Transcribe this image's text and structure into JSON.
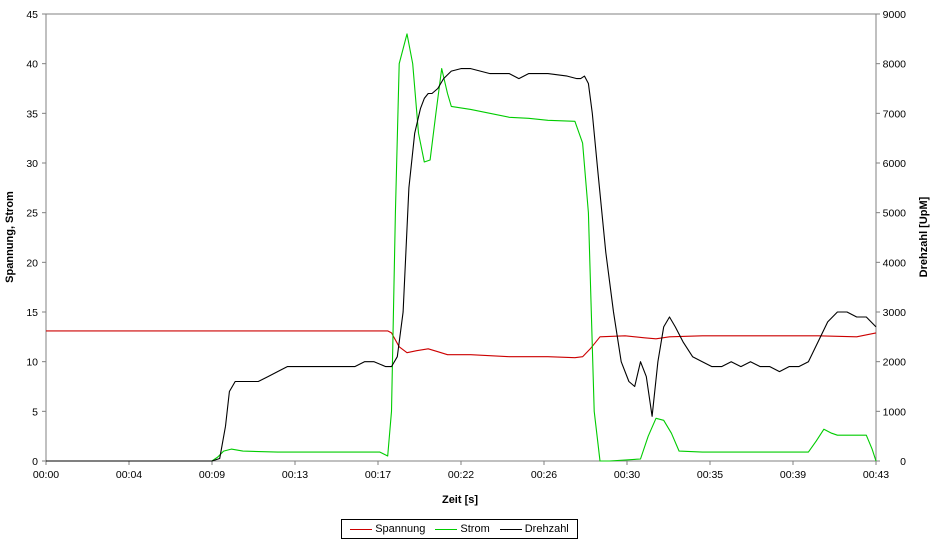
{
  "chart_data": {
    "type": "line",
    "xlabel": "Zeit [s]",
    "ylabel_left": "Spannung, Strom",
    "ylabel_right": "Drehzahl [UpM]",
    "xlim": [
      0,
      43
    ],
    "ylim_left": [
      0,
      45
    ],
    "ylim_right": [
      0,
      9000
    ],
    "x_ticks": [
      {
        "value": 0,
        "label": "00:00"
      },
      {
        "value": 4.3,
        "label": "00:04"
      },
      {
        "value": 8.6,
        "label": "00:09"
      },
      {
        "value": 12.9,
        "label": "00:13"
      },
      {
        "value": 17.2,
        "label": "00:17"
      },
      {
        "value": 21.5,
        "label": "00:22"
      },
      {
        "value": 25.8,
        "label": "00:26"
      },
      {
        "value": 30.1,
        "label": "00:30"
      },
      {
        "value": 34.4,
        "label": "00:35"
      },
      {
        "value": 38.7,
        "label": "00:39"
      },
      {
        "value": 43,
        "label": "00:43"
      }
    ],
    "y_ticks_left": [
      0,
      5,
      10,
      15,
      20,
      25,
      30,
      35,
      40,
      45
    ],
    "y_ticks_right": [
      0,
      1000,
      2000,
      3000,
      4000,
      5000,
      6000,
      7000,
      8000,
      9000
    ],
    "grid": false,
    "legend_position": "bottom",
    "series": [
      {
        "name": "Spannung",
        "axis": "left",
        "color": "#cc0000",
        "x": [
          0,
          17.7,
          17.9,
          18.3,
          18.7,
          19.2,
          19.8,
          20.3,
          20.8,
          22,
          24,
          26,
          27.4,
          27.8,
          28.2,
          28.7,
          30,
          31,
          31.6,
          32.3,
          34,
          36,
          38,
          40,
          42,
          43
        ],
        "y": [
          13.1,
          13.1,
          12.9,
          11.5,
          10.9,
          11.1,
          11.3,
          11.0,
          10.7,
          10.7,
          10.5,
          10.5,
          10.4,
          10.5,
          11.3,
          12.5,
          12.6,
          12.4,
          12.3,
          12.5,
          12.6,
          12.6,
          12.6,
          12.6,
          12.5,
          12.9
        ]
      },
      {
        "name": "Strom",
        "axis": "left",
        "color": "#00cc00",
        "x": [
          0,
          8.6,
          8.9,
          9.2,
          9.6,
          10.2,
          12,
          14,
          16,
          17.3,
          17.7,
          17.9,
          18.1,
          18.3,
          18.7,
          19.0,
          19.3,
          19.6,
          19.9,
          20.2,
          20.5,
          20.8,
          21.0,
          22,
          24,
          25,
          26,
          27.4,
          27.8,
          28.1,
          28.4,
          28.7,
          29.2,
          30.8,
          31.2,
          31.6,
          32.0,
          32.4,
          32.8,
          34,
          36,
          38,
          39.5,
          39.9,
          40.3,
          40.7,
          41.0,
          41.5,
          42.5,
          42.8,
          43
        ],
        "y": [
          0,
          0,
          0.4,
          1.0,
          1.2,
          1.0,
          0.9,
          0.9,
          0.9,
          0.9,
          0.5,
          5,
          25,
          40,
          43.0,
          40,
          33,
          30.1,
          30.3,
          35,
          39.5,
          37,
          35.7,
          35.4,
          34.6,
          34.5,
          34.3,
          34.2,
          32,
          25,
          5,
          0,
          0,
          0.2,
          2.5,
          4.3,
          4.1,
          2.8,
          1.0,
          0.9,
          0.9,
          0.9,
          0.9,
          2.0,
          3.2,
          2.8,
          2.6,
          2.6,
          2.6,
          1.2,
          0
        ]
      },
      {
        "name": "Drehzahl",
        "axis": "right",
        "color": "#000000",
        "x": [
          0,
          8.6,
          9.0,
          9.3,
          9.5,
          9.8,
          10.0,
          11,
          11.5,
          12,
          12.5,
          14,
          15,
          16,
          16.5,
          17,
          17.6,
          17.9,
          18.2,
          18.5,
          18.8,
          19.1,
          19.4,
          19.6,
          19.8,
          20,
          20.3,
          20.6,
          21,
          21.5,
          22,
          23,
          24,
          24.5,
          25,
          26,
          27,
          27.5,
          27.7,
          27.9,
          28.1,
          28.3,
          28.6,
          29,
          29.4,
          29.8,
          30.2,
          30.5,
          30.8,
          31.1,
          31.4,
          31.7,
          32.0,
          32.3,
          32.6,
          33,
          33.5,
          34,
          34.5,
          35,
          35.5,
          36,
          36.5,
          37,
          37.5,
          38,
          38.5,
          39,
          39.5,
          40,
          40.5,
          41,
          41.5,
          42,
          42.5,
          43
        ],
        "y": [
          0,
          0,
          50,
          700,
          1400,
          1600,
          1600,
          1600,
          1700,
          1800,
          1900,
          1900,
          1900,
          1900,
          2000,
          2000,
          1900,
          1900,
          2100,
          3000,
          5500,
          6600,
          7100,
          7300,
          7400,
          7400,
          7500,
          7700,
          7850,
          7900,
          7900,
          7800,
          7800,
          7700,
          7800,
          7800,
          7750,
          7700,
          7700,
          7750,
          7600,
          7000,
          5800,
          4200,
          3000,
          2000,
          1600,
          1500,
          2000,
          1700,
          900,
          2000,
          2700,
          2900,
          2700,
          2400,
          2100,
          2000,
          1900,
          1900,
          2000,
          1900,
          2000,
          1900,
          1900,
          1800,
          1900,
          1900,
          2000,
          2400,
          2800,
          3000,
          3000,
          2900,
          2900,
          2700
        ]
      }
    ]
  }
}
